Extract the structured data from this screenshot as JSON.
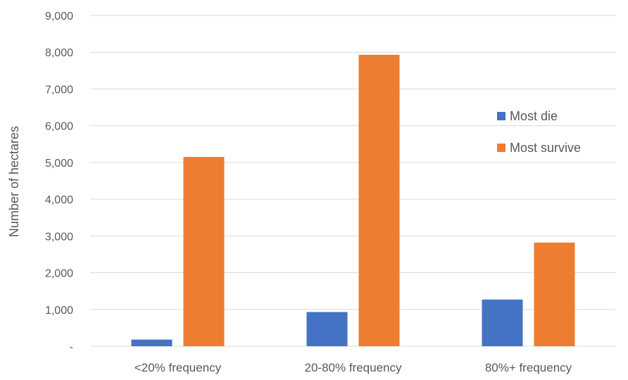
{
  "chart_data": {
    "type": "bar",
    "title": "",
    "xlabel": "",
    "ylabel": "Number of hectares",
    "categories": [
      "<20% frequency",
      "20-80% frequency",
      "80%+ frequency"
    ],
    "series": [
      {
        "name": "Most die",
        "color": "#4472C4",
        "values": [
          180,
          930,
          1270
        ]
      },
      {
        "name": "Most survive",
        "color": "#ED7D31",
        "values": [
          5150,
          7930,
          2820
        ]
      }
    ],
    "ylim": [
      0,
      9000
    ],
    "yticks": [
      {
        "value": 0,
        "label": "-"
      },
      {
        "value": 1000,
        "label": "1,000"
      },
      {
        "value": 2000,
        "label": "2,000"
      },
      {
        "value": 3000,
        "label": "3,000"
      },
      {
        "value": 4000,
        "label": "4,000"
      },
      {
        "value": 5000,
        "label": "5,000"
      },
      {
        "value": 6000,
        "label": "6,000"
      },
      {
        "value": 7000,
        "label": "7,000"
      },
      {
        "value": 8000,
        "label": "8,000"
      },
      {
        "value": 9000,
        "label": "9,000"
      }
    ],
    "grid": true,
    "gridline_color": "#D9D9D9",
    "legend_position": "right"
  }
}
